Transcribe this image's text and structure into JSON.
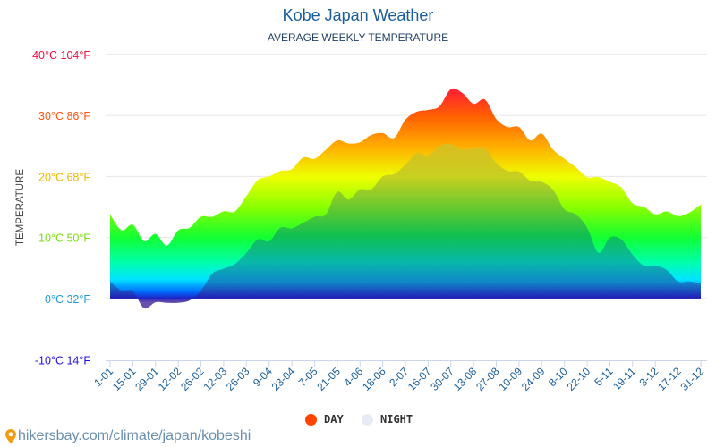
{
  "chart_data": {
    "type": "area",
    "title": "Kobe Japan Weather",
    "subtitle": "AVERAGE WEEKLY TEMPERATURE",
    "ylabel": "TEMPERATURE",
    "ylim": [
      -10,
      40
    ],
    "yticks": [
      {
        "value": 40,
        "label": "40°C 104°F",
        "color": "#ee1144"
      },
      {
        "value": 30,
        "label": "30°C 86°F",
        "color": "#ff5511"
      },
      {
        "value": 20,
        "label": "20°C 68°F",
        "color": "#f0b800"
      },
      {
        "value": 10,
        "label": "10°C 50°F",
        "color": "#77dd11"
      },
      {
        "value": 0,
        "label": "0°C 32°F",
        "color": "#2299dd"
      },
      {
        "value": -10,
        "label": "-10°C 14°F",
        "color": "#2211dd"
      }
    ],
    "grid": true,
    "xtick_labels": [
      "1-01",
      "15-01",
      "29-01",
      "12-02",
      "26-02",
      "12-03",
      "26-03",
      "9-04",
      "23-04",
      "7-05",
      "21-05",
      "4-06",
      "18-06",
      "2-07",
      "16-07",
      "30-07",
      "13-08",
      "27-08",
      "10-09",
      "24-09",
      "8-10",
      "22-10",
      "5-11",
      "19-11",
      "3-12",
      "17-12",
      "31-12"
    ],
    "legend_placement": "bottom",
    "series": [
      {
        "name": "DAY",
        "color": "#ff4400",
        "values": [
          13.8,
          11.2,
          12.1,
          9.4,
          10.6,
          8.7,
          11.2,
          11.6,
          13.4,
          13.4,
          14.3,
          14.3,
          16.8,
          19.4,
          20.0,
          20.9,
          21.2,
          23.1,
          22.9,
          24.4,
          25.9,
          25.4,
          25.6,
          26.8,
          27.1,
          26.3,
          29.3,
          30.6,
          30.9,
          31.5,
          34.3,
          33.7,
          31.9,
          32.6,
          29.4,
          28.1,
          28.1,
          25.9,
          27.0,
          24.4,
          22.9,
          21.5,
          19.9,
          19.9,
          19.1,
          18.2,
          15.6,
          15.0,
          13.8,
          14.3,
          13.5,
          14.1,
          15.4
        ]
      },
      {
        "name": "NIGHT",
        "color": "#e6ecf5",
        "values": [
          2.8,
          1.3,
          1.2,
          -1.6,
          -0.6,
          -0.7,
          -0.7,
          -0.3,
          1.3,
          4.1,
          4.9,
          5.7,
          7.5,
          9.7,
          9.4,
          11.6,
          11.5,
          12.4,
          13.4,
          13.8,
          17.5,
          16.2,
          17.9,
          17.9,
          20.0,
          20.4,
          21.9,
          23.8,
          23.4,
          25.0,
          25.3,
          24.4,
          24.6,
          24.6,
          22.2,
          20.9,
          20.8,
          19.3,
          19.1,
          17.8,
          14.6,
          13.8,
          11.6,
          7.5,
          10.0,
          9.7,
          7.2,
          5.4,
          5.4,
          4.7,
          2.8,
          2.8,
          2.5
        ]
      }
    ]
  },
  "footer": {
    "text": "hikersbay.com/climate/japan/kobeshi",
    "icon": "location-pin-icon"
  }
}
